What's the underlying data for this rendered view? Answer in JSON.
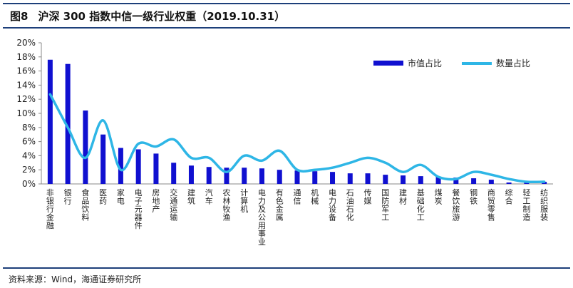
{
  "header": {
    "fig_label": "图8",
    "title": "沪深 300 指数中信一级行业权重（2019.10.31）"
  },
  "source": "资料来源：Wind，海通证券研究所",
  "colors": {
    "bar": "#1010d0",
    "line": "#2eb6e6",
    "rule": "#1d3f7a"
  },
  "chart_data": {
    "type": "bar",
    "title": "沪深 300 指数中信一级行业权重（2019.10.31）",
    "xlabel": "",
    "ylabel": "",
    "ylim": [
      0,
      20
    ],
    "y_ticks": [
      "0%",
      "2%",
      "4%",
      "6%",
      "8%",
      "10%",
      "12%",
      "14%",
      "16%",
      "18%",
      "20%"
    ],
    "grid": false,
    "legend_position": "top-right",
    "categories": [
      "非银行金融",
      "银行",
      "食品饮料",
      "医药",
      "家电",
      "电子元器件",
      "房地产",
      "交通运输",
      "建筑",
      "汽车",
      "农林牧渔",
      "计算机",
      "电力及公用事业",
      "有色金属",
      "通信",
      "机械",
      "电力设备",
      "石油石化",
      "传媒",
      "国防军工",
      "建材",
      "基础化工",
      "煤炭",
      "餐饮旅游",
      "钢铁",
      "商贸零售",
      "综合",
      "轻工制造",
      "纺织服装"
    ],
    "series": [
      {
        "name": "市值占比",
        "type": "bar",
        "values": [
          17.6,
          17.0,
          10.4,
          7.0,
          5.1,
          4.9,
          4.3,
          3.0,
          2.6,
          2.4,
          2.3,
          2.3,
          2.2,
          2.0,
          1.9,
          1.8,
          1.7,
          1.5,
          1.5,
          1.3,
          1.2,
          1.1,
          1.0,
          0.9,
          0.8,
          0.6,
          0.2,
          0.3,
          0.3
        ]
      },
      {
        "name": "数量占比",
        "type": "line",
        "values": [
          12.7,
          8.0,
          3.7,
          9.0,
          2.0,
          5.7,
          5.3,
          6.3,
          3.7,
          3.7,
          1.7,
          4.0,
          3.3,
          4.7,
          2.0,
          2.0,
          2.3,
          3.0,
          3.7,
          3.0,
          1.7,
          2.7,
          1.0,
          0.7,
          1.7,
          1.3,
          0.7,
          0.3,
          0.3
        ]
      }
    ]
  }
}
